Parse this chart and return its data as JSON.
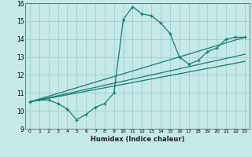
{
  "title": "",
  "xlabel": "Humidex (Indice chaleur)",
  "bg_color": "#c5e8e8",
  "grid_color": "#9ecfcf",
  "line_color": "#1a7a6e",
  "xlim": [
    -0.5,
    23.5
  ],
  "ylim": [
    9,
    16
  ],
  "xticks": [
    0,
    1,
    2,
    3,
    4,
    5,
    6,
    7,
    8,
    9,
    10,
    11,
    12,
    13,
    14,
    15,
    16,
    17,
    18,
    19,
    20,
    21,
    22,
    23
  ],
  "yticks": [
    9,
    10,
    11,
    12,
    13,
    14,
    15,
    16
  ],
  "line1_x": [
    0,
    1,
    2,
    3,
    4,
    5,
    6,
    7,
    8,
    9,
    10,
    11,
    12,
    13,
    14,
    15,
    16,
    17,
    18,
    19,
    20,
    21,
    22,
    23
  ],
  "line1_y": [
    10.5,
    10.6,
    10.6,
    10.4,
    10.1,
    9.5,
    9.8,
    10.2,
    10.4,
    11.0,
    15.1,
    15.8,
    15.4,
    15.3,
    14.9,
    14.3,
    13.0,
    12.6,
    12.8,
    13.3,
    13.5,
    14.0,
    14.1,
    14.1
  ],
  "line2_x": [
    0,
    23
  ],
  "line2_y": [
    10.5,
    14.1
  ],
  "line3_x": [
    0,
    23
  ],
  "line3_y": [
    10.5,
    13.15
  ],
  "line4_x": [
    0,
    23
  ],
  "line4_y": [
    10.5,
    12.75
  ]
}
